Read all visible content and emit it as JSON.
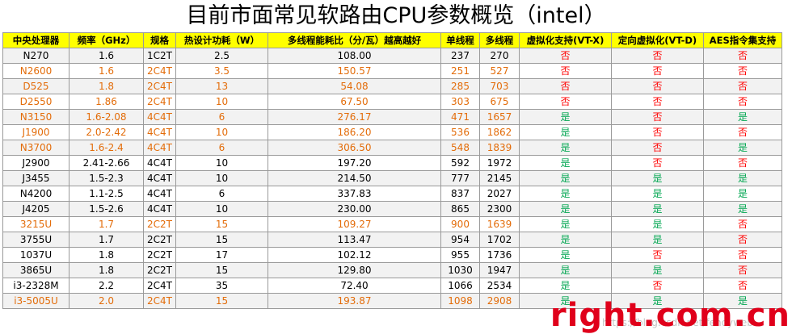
{
  "title": "目前市面常见软路由CPU参数概览（intel）",
  "headers": [
    "中央处理器",
    "频率（GHz）",
    "规格",
    "热设计功耗（W）",
    "多线程能耗比（分/瓦）越高越好",
    "单线程",
    "多线程",
    "虚拟化支持(VT-X)",
    "定向虚拟化(VT-D)",
    "AES指令集支持"
  ],
  "rows": [
    {
      "tone": "black",
      "cells": [
        "N270",
        "1.6",
        "1C2T",
        "2.5",
        "108.00",
        "237",
        "270"
      ],
      "flags": [
        "否",
        "否",
        "否"
      ]
    },
    {
      "tone": "orange",
      "cells": [
        "N2600",
        "1.6",
        "2C4T",
        "3.5",
        "150.57",
        "251",
        "527"
      ],
      "flags": [
        "否",
        "否",
        "否"
      ]
    },
    {
      "tone": "orange",
      "cells": [
        "D525",
        "1.8",
        "2C4T",
        "13",
        "54.08",
        "285",
        "703"
      ],
      "flags": [
        "否",
        "否",
        "否"
      ]
    },
    {
      "tone": "orange",
      "cells": [
        "D2550",
        "1.86",
        "2C4T",
        "10",
        "67.50",
        "303",
        "675"
      ],
      "flags": [
        "否",
        "否",
        "否"
      ]
    },
    {
      "tone": "orange",
      "cells": [
        "N3150",
        "1.6-2.08",
        "4C4T",
        "6",
        "276.17",
        "471",
        "1657"
      ],
      "flags": [
        "是",
        "否",
        "是"
      ]
    },
    {
      "tone": "orange",
      "cells": [
        "J1900",
        "2.0-2.42",
        "4C4T",
        "10",
        "186.20",
        "536",
        "1862"
      ],
      "flags": [
        "是",
        "否",
        "否"
      ]
    },
    {
      "tone": "orange",
      "cells": [
        "N3700",
        "1.6-2.4",
        "4C4T",
        "6",
        "306.50",
        "548",
        "1839"
      ],
      "flags": [
        "是",
        "否",
        "是"
      ]
    },
    {
      "tone": "black",
      "cells": [
        "J2900",
        "2.41-2.66",
        "4C4T",
        "10",
        "197.20",
        "592",
        "1972"
      ],
      "flags": [
        "是",
        "否",
        "否"
      ]
    },
    {
      "tone": "black",
      "cells": [
        "J3455",
        "1.5-2.3",
        "4C4T",
        "10",
        "214.50",
        "777",
        "2145"
      ],
      "flags": [
        "是",
        "是",
        "是"
      ]
    },
    {
      "tone": "black",
      "cells": [
        "N4200",
        "1.1-2.5",
        "4C4T",
        "6",
        "337.83",
        "837",
        "2027"
      ],
      "flags": [
        "是",
        "是",
        "是"
      ]
    },
    {
      "tone": "black",
      "cells": [
        "J4205",
        "1.5-2.6",
        "4C4T",
        "10",
        "230.00",
        "865",
        "2300"
      ],
      "flags": [
        "是",
        "是",
        "是"
      ]
    },
    {
      "tone": "orange",
      "cells": [
        "3215U",
        "1.7",
        "2C2T",
        "15",
        "109.27",
        "900",
        "1639"
      ],
      "flags": [
        "是",
        "是",
        "否"
      ]
    },
    {
      "tone": "black",
      "cells": [
        "3755U",
        "1.7",
        "2C2T",
        "15",
        "113.47",
        "954",
        "1702"
      ],
      "flags": [
        "是",
        "是",
        "否"
      ]
    },
    {
      "tone": "black",
      "cells": [
        "1037U",
        "1.8",
        "2C2T",
        "17",
        "102.12",
        "955",
        "1736"
      ],
      "flags": [
        "是",
        "否",
        "否"
      ]
    },
    {
      "tone": "black",
      "cells": [
        "3865U",
        "1.8",
        "2C2T",
        "15",
        "129.80",
        "1030",
        "1947"
      ],
      "flags": [
        "是",
        "是",
        "否"
      ]
    },
    {
      "tone": "black",
      "cells": [
        "i3-2328M",
        "2.2",
        "2C4T",
        "35",
        "72.40",
        "1066",
        "2534"
      ],
      "flags": [
        "是",
        "否",
        "否"
      ]
    },
    {
      "tone": "orange",
      "cells": [
        "i3-5005U",
        "2.0",
        "2C4T",
        "15",
        "193.87",
        "1098",
        "2908"
      ],
      "flags": [
        "是",
        "是",
        "是"
      ]
    }
  ],
  "watermark_brand": "right.com.cn",
  "watermark_url": "https://blog.csdn.net/fenoyweb",
  "colors": {
    "header_bg": "#ffff00",
    "orange_text": "#e36c09",
    "no_red": "#ff0000",
    "yes_green": "#00a650",
    "watermark_red": "#e0001b"
  }
}
